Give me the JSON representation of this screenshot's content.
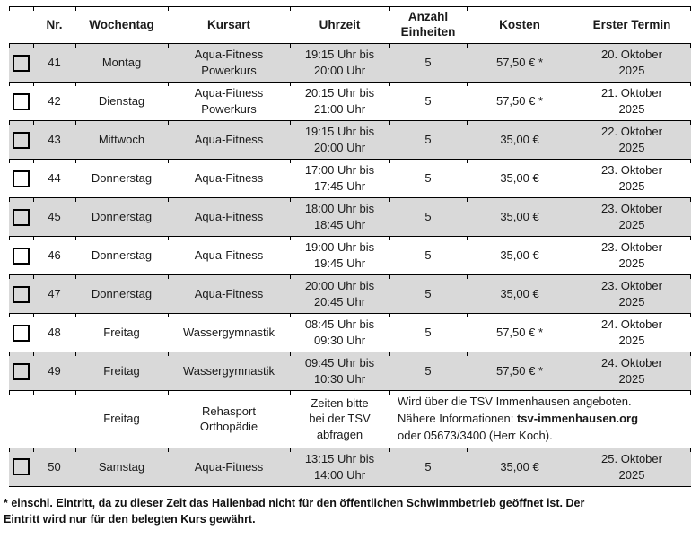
{
  "colors": {
    "row_shading": "#d9d9d9",
    "border": "#000000",
    "text": "#1a1a1a"
  },
  "table": {
    "headers": {
      "nr": "Nr.",
      "day": "Wochentag",
      "course": "Kursart",
      "time": "Uhrzeit",
      "units": "Anzahl\nEinheiten",
      "cost": "Kosten",
      "first_date": "Erster Termin"
    },
    "rows": [
      {
        "nr": "41",
        "day": "Montag",
        "course": "Aqua-Fitness\nPowerkurs",
        "time": "19:15 Uhr bis\n20:00 Uhr",
        "units": "5",
        "cost": "57,50 € *",
        "first_date": "20. Oktober\n2025"
      },
      {
        "nr": "42",
        "day": "Dienstag",
        "course": "Aqua-Fitness\nPowerkurs",
        "time": "20:15 Uhr bis\n21:00 Uhr",
        "units": "5",
        "cost": "57,50 € *",
        "first_date": "21. Oktober\n2025"
      },
      {
        "nr": "43",
        "day": "Mittwoch",
        "course": "Aqua-Fitness",
        "time": "19:15 Uhr bis\n20:00 Uhr",
        "units": "5",
        "cost": "35,00 €",
        "first_date": "22. Oktober\n2025"
      },
      {
        "nr": "44",
        "day": "Donnerstag",
        "course": "Aqua-Fitness",
        "time": "17:00 Uhr bis\n17:45 Uhr",
        "units": "5",
        "cost": "35,00 €",
        "first_date": "23. Oktober\n2025"
      },
      {
        "nr": "45",
        "day": "Donnerstag",
        "course": "Aqua-Fitness",
        "time": "18:00 Uhr bis\n18:45 Uhr",
        "units": "5",
        "cost": "35,00 €",
        "first_date": "23. Oktober\n2025"
      },
      {
        "nr": "46",
        "day": "Donnerstag",
        "course": "Aqua-Fitness",
        "time": "19:00 Uhr bis\n19:45 Uhr",
        "units": "5",
        "cost": "35,00 €",
        "first_date": "23. Oktober\n2025"
      },
      {
        "nr": "47",
        "day": "Donnerstag",
        "course": "Aqua-Fitness",
        "time": "20:00 Uhr bis\n20:45 Uhr",
        "units": "5",
        "cost": "35,00 €",
        "first_date": "23. Oktober\n2025"
      },
      {
        "nr": "48",
        "day": "Freitag",
        "course": "Wassergymnastik",
        "time": "08:45 Uhr bis\n09:30 Uhr",
        "units": "5",
        "cost": "57,50 € *",
        "first_date": "24. Oktober\n2025"
      },
      {
        "nr": "49",
        "day": "Freitag",
        "course": "Wassergymnastik",
        "time": "09:45 Uhr bis\n10:30 Uhr",
        "units": "5",
        "cost": "57,50 € *",
        "first_date": "24. Oktober\n2025"
      },
      {
        "nr": "50",
        "day": "Samstag",
        "course": "Aqua-Fitness",
        "time": "13:15 Uhr bis\n14:00 Uhr",
        "units": "5",
        "cost": "35,00 €",
        "first_date": "25. Oktober\n2025"
      }
    ],
    "info_row": {
      "day": "Freitag",
      "course": "Rehasport\nOrthopädie",
      "time": "Zeiten bitte\nbei der TSV\nabfragen",
      "info_line1": "Wird über die TSV Immenhausen angeboten.",
      "info_line2_prefix": "Nähere Informationen: ",
      "info_link": "tsv-immenhausen.org",
      "info_line3": "oder 05673/3400 (Herr Koch)."
    }
  },
  "footnote": "* einschl. Eintritt, da zu dieser Zeit das Hallenbad nicht für den öffentlichen Schwimmbetrieb geöffnet ist. Der\nEintritt wird nur für den belegten Kurs gewährt."
}
